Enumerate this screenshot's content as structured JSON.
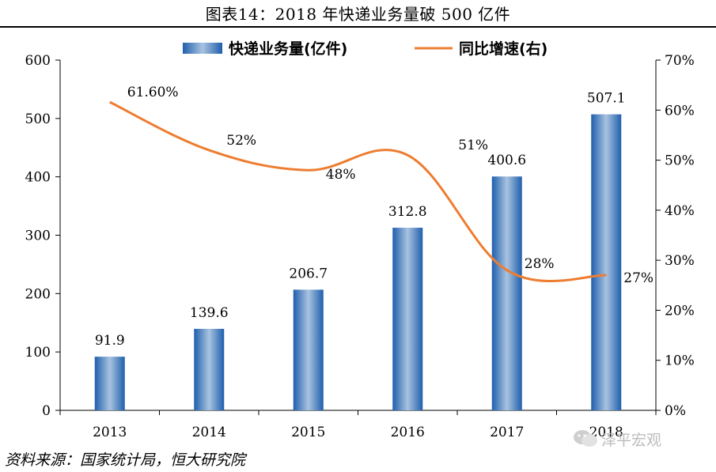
{
  "figure_title": "图表14：2018 年快递业务量破 500 亿件",
  "source_note": "资料来源：国家统计局，恒大研究院",
  "watermark": "泽平宏观",
  "colors": {
    "bar_dark": "#1f5fad",
    "bar_light": "#a9c3e0",
    "line": "#ed7d31",
    "axis": "#000000"
  },
  "chart_data": {
    "type": "bar+line",
    "categories": [
      "2013",
      "2014",
      "2015",
      "2016",
      "2017",
      "2018"
    ],
    "series": [
      {
        "name": "快递业务量(亿件)",
        "type": "bar",
        "axis": "left",
        "values": [
          91.9,
          139.6,
          206.7,
          312.8,
          400.6,
          507.1
        ],
        "labels": [
          "91.9",
          "139.6",
          "206.7",
          "312.8",
          "400.6",
          "507.1"
        ]
      },
      {
        "name": "同比增速(右)",
        "type": "line",
        "axis": "right",
        "values": [
          61.6,
          52,
          48,
          51,
          28,
          27
        ],
        "labels": [
          "61.60%",
          "52%",
          "48%",
          "51%",
          "28%",
          "27%"
        ]
      }
    ],
    "y_left": {
      "min": 0,
      "max": 600,
      "ticks": [
        "0",
        "100",
        "200",
        "300",
        "400",
        "500",
        "600"
      ]
    },
    "y_right": {
      "min": 0,
      "max": 70,
      "ticks": [
        "0%",
        "10%",
        "20%",
        "30%",
        "40%",
        "50%",
        "60%",
        "70%"
      ]
    },
    "legend_position": "top-center",
    "grid": false
  }
}
